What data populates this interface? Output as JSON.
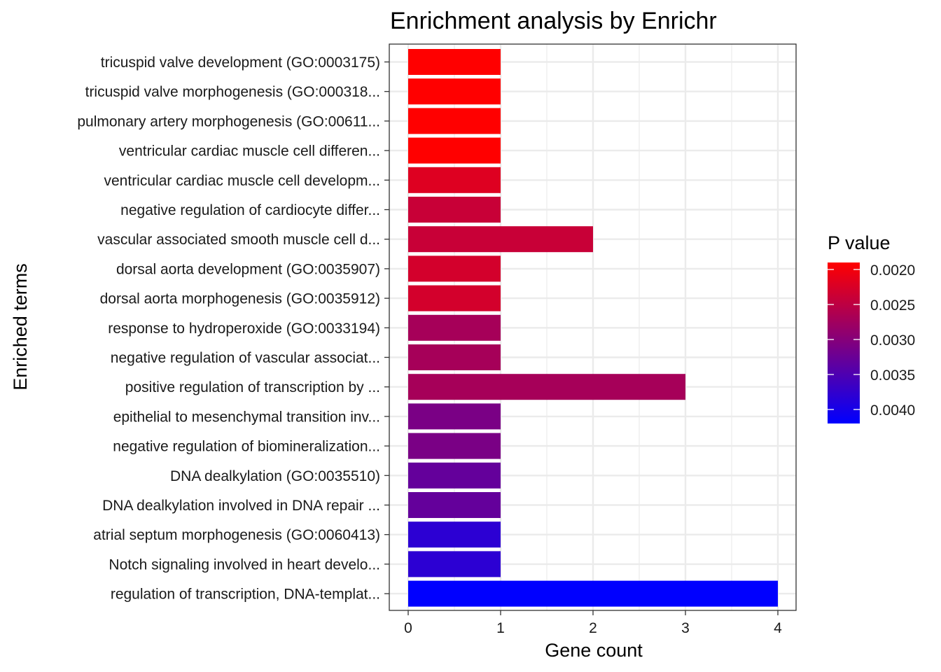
{
  "chart_data": {
    "type": "bar",
    "orientation": "horizontal",
    "title": "Enrichment analysis by Enrichr",
    "xlabel": "Gene count",
    "ylabel": "Enriched terms",
    "xlim": [
      0,
      4
    ],
    "xticks": [
      "0",
      "1",
      "2",
      "3",
      "4"
    ],
    "grid": true,
    "categories": [
      "tricuspid valve development (GO:0003175)",
      "tricuspid valve morphogenesis (GO:000318...",
      "pulmonary artery morphogenesis (GO:00611...",
      "ventricular cardiac muscle cell differen...",
      "ventricular cardiac muscle cell developm...",
      "negative regulation of cardiocyte differ...",
      "vascular associated smooth muscle cell d...",
      "dorsal aorta development (GO:0035907)",
      "dorsal aorta morphogenesis (GO:0035912)",
      "response to hydroperoxide (GO:0033194)",
      "negative regulation of vascular associat...",
      "positive regulation of transcription by ...",
      "epithelial to mesenchymal transition inv...",
      "negative regulation of biomineralization...",
      "DNA dealkylation (GO:0035510)",
      "DNA dealkylation involved in DNA repair ...",
      "atrial septum morphogenesis (GO:0060413)",
      "Notch signaling involved in heart develo...",
      "regulation of transcription, DNA-templat..."
    ],
    "values": [
      1,
      1,
      1,
      1,
      1,
      1,
      2,
      1,
      1,
      1,
      1,
      3,
      1,
      1,
      1,
      1,
      1,
      1,
      4
    ],
    "p_values": [
      0.0019,
      0.0019,
      0.0019,
      0.0019,
      0.0022,
      0.0024,
      0.0024,
      0.0023,
      0.0023,
      0.0027,
      0.0027,
      0.0027,
      0.0031,
      0.0031,
      0.0033,
      0.0033,
      0.0038,
      0.0038,
      0.0042
    ],
    "color_scale": {
      "title": "P value",
      "low_value": 0.0019,
      "high_value": 0.0042,
      "low_color": "#ff0000",
      "high_color": "#0000ff",
      "ticks": [
        0.002,
        0.0025,
        0.003,
        0.0035,
        0.004
      ],
      "tick_labels": [
        "0.0020",
        "0.0025",
        "0.0030",
        "0.0035",
        "0.0040"
      ]
    },
    "legend_position": "right"
  }
}
